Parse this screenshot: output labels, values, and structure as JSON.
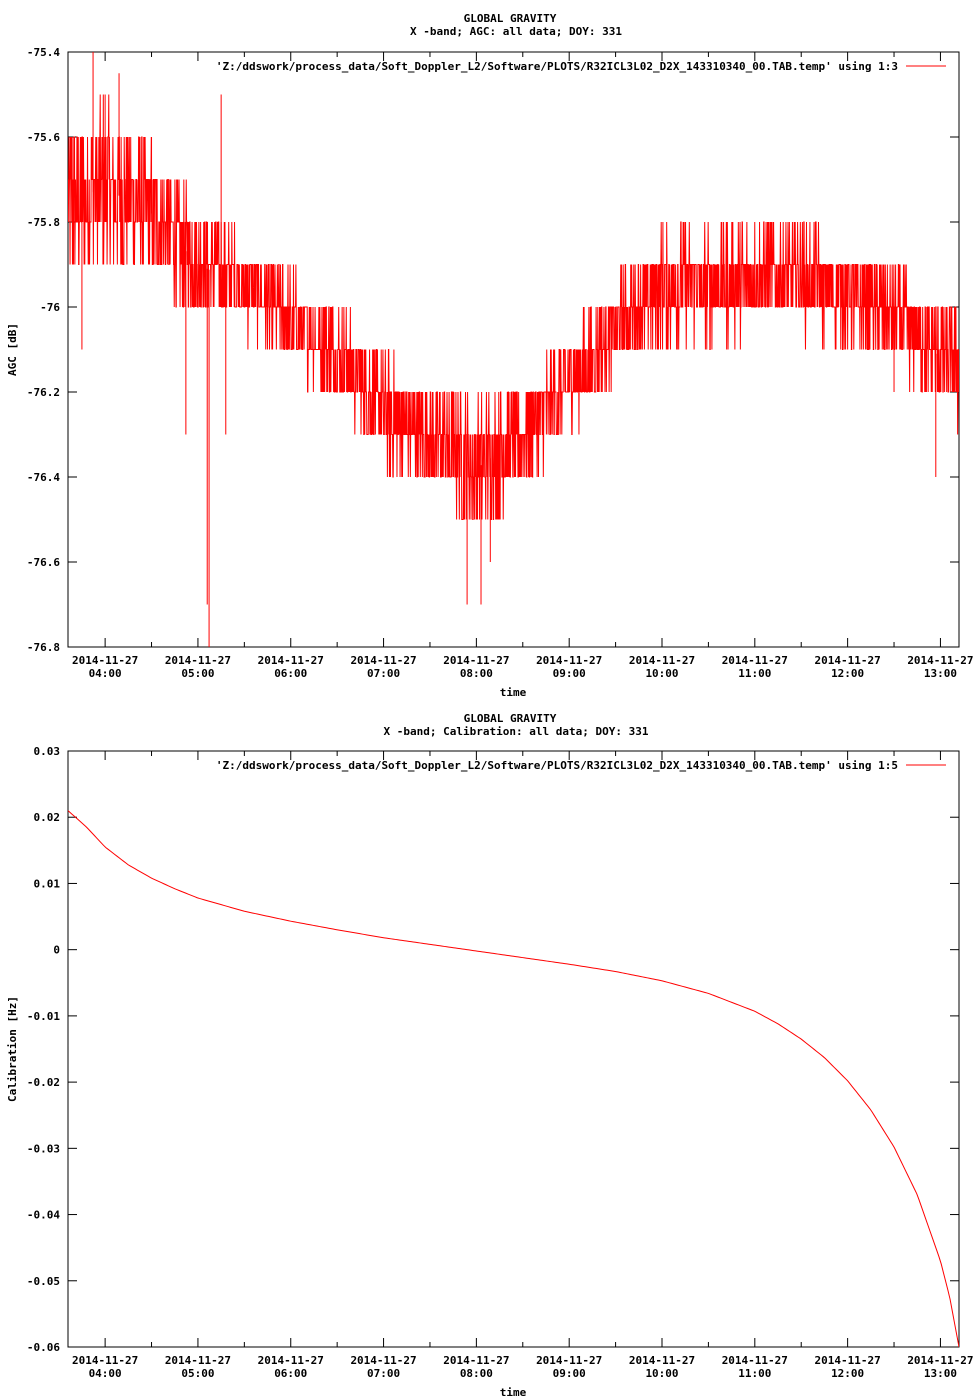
{
  "chart_data": [
    {
      "type": "line",
      "title": "GLOBAL GRAVITY",
      "subtitle": "X -band; AGC: all data; DOY: 331",
      "xlabel": "time",
      "ylabel": "AGC [dB]",
      "ylim": [
        -76.8,
        -75.4
      ],
      "y_ticks": [
        -75.4,
        -75.6,
        -75.8,
        -76,
        -76.2,
        -76.4,
        -76.6,
        -76.8
      ],
      "y_tick_labels": [
        "-75.4",
        "-75.6",
        "-75.8",
        "-76",
        "-76.2",
        "-76.4",
        "-76.6",
        "-76.8"
      ],
      "xlim_hours": [
        3.6,
        13.2
      ],
      "x_ticks_hours": [
        4,
        5,
        6,
        7,
        8,
        9,
        10,
        11,
        12,
        13
      ],
      "x_tick_dates": [
        "2014-11-27",
        "2014-11-27",
        "2014-11-27",
        "2014-11-27",
        "2014-11-27",
        "2014-11-27",
        "2014-11-27",
        "2014-11-27",
        "2014-11-27",
        "2014-11-27"
      ],
      "x_tick_times": [
        "04:00",
        "05:00",
        "06:00",
        "07:00",
        "08:00",
        "09:00",
        "10:00",
        "11:00",
        "12:00",
        "13:00"
      ],
      "legend_position": "top-right",
      "color": "#ff0000",
      "series": [
        {
          "name": "'Z:/ddswork/process_data/Soft_Doppler_L2/Software/PLOTS/R32ICL3L02_D2X_143310340_00.TAB.temp' using 1:3",
          "x_hours": [
            3.6,
            4.0,
            4.5,
            5.0,
            5.5,
            6.0,
            6.5,
            7.0,
            7.5,
            8.0,
            8.5,
            9.0,
            9.5,
            10.0,
            10.5,
            11.0,
            11.5,
            12.0,
            12.5,
            13.0,
            13.2
          ],
          "y_center": [
            -75.75,
            -75.72,
            -75.78,
            -75.9,
            -75.95,
            -76.03,
            -76.1,
            -76.25,
            -76.3,
            -76.38,
            -76.3,
            -76.18,
            -76.05,
            -75.95,
            -75.95,
            -75.93,
            -75.93,
            -75.97,
            -76.02,
            -76.12,
            -76.15
          ],
          "y_spread": [
            0.18,
            0.2,
            0.15,
            0.12,
            0.1,
            0.1,
            0.1,
            0.12,
            0.12,
            0.14,
            0.12,
            0.1,
            0.1,
            0.12,
            0.12,
            0.12,
            0.12,
            0.1,
            0.1,
            0.12,
            0.12
          ],
          "spikes": [
            {
              "x": 3.87,
              "y": -75.4
            },
            {
              "x": 4.0,
              "y": -75.5
            },
            {
              "x": 4.15,
              "y": -75.45
            },
            {
              "x": 4.5,
              "y": -75.6
            },
            {
              "x": 5.25,
              "y": -75.5
            },
            {
              "x": 3.75,
              "y": -76.1
            },
            {
              "x": 5.1,
              "y": -76.7
            },
            {
              "x": 5.12,
              "y": -76.82
            },
            {
              "x": 5.3,
              "y": -76.3
            },
            {
              "x": 4.87,
              "y": -76.3
            },
            {
              "x": 7.9,
              "y": -76.7
            },
            {
              "x": 8.05,
              "y": -76.7
            },
            {
              "x": 8.15,
              "y": -76.6
            },
            {
              "x": 12.95,
              "y": -76.4
            },
            {
              "x": 12.5,
              "y": -76.2
            }
          ]
        }
      ]
    },
    {
      "type": "line",
      "title": "GLOBAL GRAVITY",
      "subtitle": "X -band; Calibration: all data; DOY: 331",
      "xlabel": "time",
      "ylabel": "Calibration [Hz]",
      "ylim": [
        -0.06,
        0.03
      ],
      "y_ticks": [
        0.03,
        0.02,
        0.01,
        0,
        -0.01,
        -0.02,
        -0.03,
        -0.04,
        -0.05,
        -0.06
      ],
      "y_tick_labels": [
        "0.03",
        "0.02",
        "0.01",
        "0",
        "-0.01",
        "-0.02",
        "-0.03",
        "-0.04",
        "-0.05",
        "-0.06"
      ],
      "xlim_hours": [
        3.6,
        13.2
      ],
      "x_ticks_hours": [
        4,
        5,
        6,
        7,
        8,
        9,
        10,
        11,
        12,
        13
      ],
      "x_tick_dates": [
        "2014-11-27",
        "2014-11-27",
        "2014-11-27",
        "2014-11-27",
        "2014-11-27",
        "2014-11-27",
        "2014-11-27",
        "2014-11-27",
        "2014-11-27",
        "2014-11-27"
      ],
      "x_tick_times": [
        "04:00",
        "05:00",
        "06:00",
        "07:00",
        "08:00",
        "09:00",
        "10:00",
        "11:00",
        "12:00",
        "13:00"
      ],
      "legend_position": "top-right",
      "color": "#ff0000",
      "series": [
        {
          "name": "'Z:/ddswork/process_data/Soft_Doppler_L2/Software/PLOTS/R32ICL3L02_D2X_143310340_00.TAB.temp' using 1:5",
          "x_hours": [
            3.6,
            3.8,
            4.0,
            4.25,
            4.5,
            4.75,
            5.0,
            5.5,
            6.0,
            6.5,
            7.0,
            7.5,
            8.0,
            8.5,
            9.0,
            9.5,
            10.0,
            10.5,
            11.0,
            11.25,
            11.5,
            11.75,
            12.0,
            12.25,
            12.5,
            12.75,
            13.0,
            13.1,
            13.2
          ],
          "y": [
            0.021,
            0.0185,
            0.0155,
            0.0128,
            0.0108,
            0.0092,
            0.0078,
            0.0058,
            0.0043,
            0.003,
            0.0018,
            0.0008,
            -0.0002,
            -0.0012,
            -0.0022,
            -0.0033,
            -0.0047,
            -0.0066,
            -0.0093,
            -0.0112,
            -0.0135,
            -0.0163,
            -0.0198,
            -0.0242,
            -0.0298,
            -0.037,
            -0.047,
            -0.0525,
            -0.06
          ]
        }
      ]
    }
  ]
}
